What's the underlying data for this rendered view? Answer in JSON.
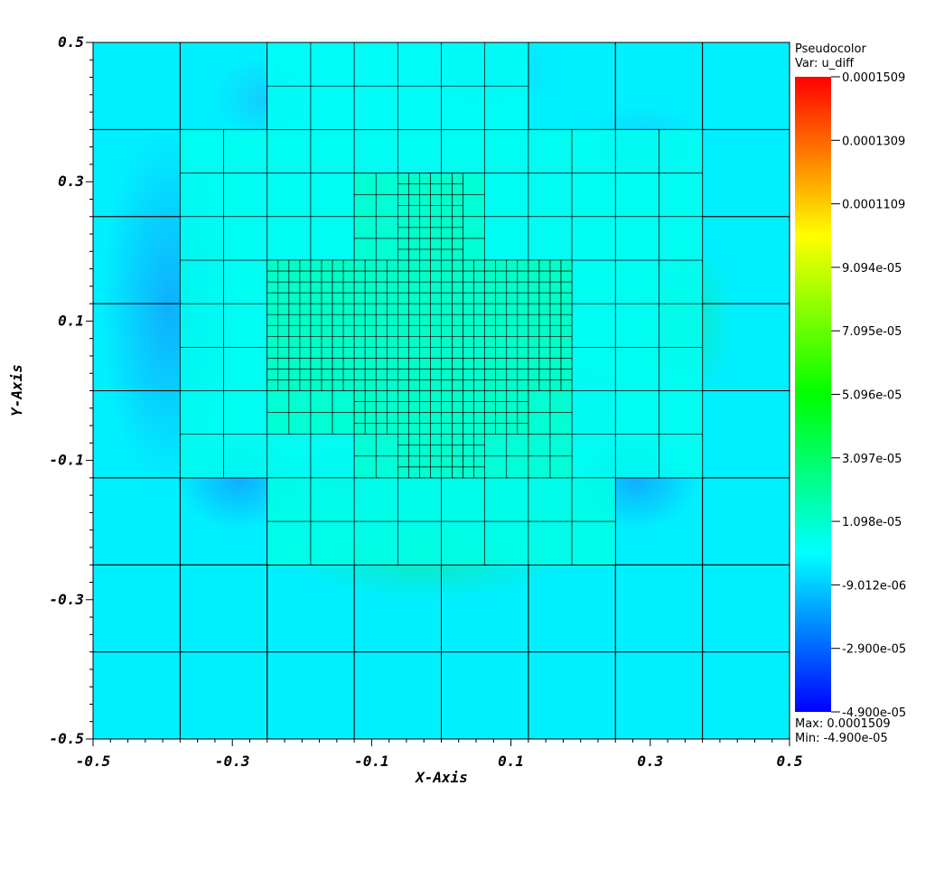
{
  "chart_data": {
    "type": "heatmap",
    "xlabel": "X-Axis",
    "ylabel": "Y-Axis",
    "xlim": [
      -0.5,
      0.5
    ],
    "ylim": [
      -0.5,
      0.5
    ],
    "x_ticks": [
      -0.5,
      -0.3,
      -0.1,
      0.1,
      0.3,
      0.5
    ],
    "y_ticks": [
      -0.5,
      -0.3,
      -0.1,
      0.1,
      0.3,
      0.5
    ],
    "x_tick_labels": [
      "-0.5",
      "-0.3",
      "-0.1",
      "0.1",
      "0.3",
      "0.5"
    ],
    "y_tick_labels": [
      "-0.5",
      "-0.3",
      "-0.1",
      "0.1",
      "0.3",
      "0.5"
    ],
    "legend": {
      "title": "Pseudocolor",
      "var_label": "Var: u_diff",
      "labels": [
        "0.0001509",
        "0.0001309",
        "0.0001109",
        "9.094e-05",
        "7.095e-05",
        "5.096e-05",
        "3.097e-05",
        "1.098e-05",
        "-9.012e-06",
        "-2.900e-05",
        "-4.900e-05"
      ],
      "max_label": "Max:  0.0001509",
      "min_label": "Min: -4.900e-05",
      "placement": "right"
    },
    "value_range": [
      -4.9e-05,
      0.0001509
    ],
    "colormap": [
      "#0000ff",
      "#00ffff",
      "#00ff00",
      "#ffff00",
      "#ff0000"
    ],
    "background_value": -2e-06,
    "amr_grid": {
      "cells": [
        [
          -0.5,
          0.375,
          0.125,
          0.125,
          -2e-06
        ],
        [
          -0.375,
          0.375,
          0.125,
          0.125,
          -2e-06
        ],
        [
          -0.25,
          0.4375,
          0.0625,
          0.0625,
          2e-06
        ],
        [
          -0.1875,
          0.4375,
          0.0625,
          0.0625,
          2e-06
        ],
        [
          -0.125,
          0.4375,
          0.0625,
          0.0625,
          2e-06
        ],
        [
          -0.0625,
          0.4375,
          0.0625,
          0.0625,
          2e-06
        ],
        [
          0,
          0.4375,
          0.0625,
          0.0625,
          2e-06
        ],
        [
          0.0625,
          0.4375,
          0.0625,
          0.0625,
          2e-06
        ],
        [
          -0.25,
          0.375,
          0.0625,
          0.0625,
          2e-06
        ],
        [
          -0.1875,
          0.375,
          0.0625,
          0.0625,
          2e-06
        ],
        [
          -0.125,
          0.375,
          0.0625,
          0.0625,
          2e-06
        ],
        [
          -0.0625,
          0.375,
          0.0625,
          0.0625,
          2e-06
        ],
        [
          0,
          0.375,
          0.0625,
          0.0625,
          2e-06
        ],
        [
          0.0625,
          0.375,
          0.0625,
          0.0625,
          2e-06
        ],
        [
          0.125,
          0.375,
          0.125,
          0.125,
          -2e-06
        ],
        [
          0.25,
          0.375,
          0.125,
          0.125,
          -2e-06
        ],
        [
          0.375,
          0.375,
          0.125,
          0.125,
          -2e-06
        ],
        [
          -0.5,
          0.25,
          0.125,
          0.125,
          -6e-06
        ],
        [
          -0.375,
          0.3125,
          0.0625,
          0.0625,
          0
        ],
        [
          -0.3125,
          0.3125,
          0.0625,
          0.0625,
          0
        ],
        [
          -0.25,
          0.3125,
          0.0625,
          0.0625,
          -1e-06
        ],
        [
          -0.1875,
          0.3125,
          0.0625,
          0.0625,
          -1e-06
        ],
        [
          -0.375,
          0.25,
          0.0625,
          0.0625,
          0
        ],
        [
          -0.3125,
          0.25,
          0.0625,
          0.0625,
          -1e-06
        ],
        [
          -0.25,
          0.25,
          0.0625,
          0.0625,
          -2e-06
        ],
        [
          -0.1875,
          0.25,
          0.0625,
          0.0625,
          -2e-06
        ],
        [
          -0.125,
          0.34375,
          0.03125,
          0.03125,
          8e-06
        ],
        [
          -0.09375,
          0.34375,
          0.03125,
          0.03125,
          8e-06
        ],
        [
          -0.0625,
          0.34375,
          0.03125,
          0.03125,
          8e-06
        ],
        [
          -0.03125,
          0.34375,
          0.03125,
          0.03125,
          8e-06
        ],
        [
          0,
          0.34375,
          0.03125,
          0.03125,
          8e-06
        ],
        [
          0.03125,
          0.34375,
          0.03125,
          0.03125,
          8e-06
        ],
        [
          -0.125,
          0.3125,
          0.03125,
          0.03125,
          8e-06
        ],
        [
          -0.09375,
          0.3125,
          0.03125,
          0.03125,
          8e-06
        ],
        [
          -0.0625,
          0.3125,
          0.03125,
          0.03125,
          8e-06
        ],
        [
          -0.03125,
          0.3125,
          0.03125,
          0.03125,
          8e-06
        ],
        [
          0,
          0.3125,
          0.03125,
          0.03125,
          8e-06
        ],
        [
          0.03125,
          0.3125,
          0.03125,
          0.03125,
          8e-06
        ],
        [
          -0.125,
          0.28125,
          0.03125,
          0.03125,
          8e-06
        ],
        [
          -0.09375,
          0.28125,
          0.03125,
          0.03125,
          8e-06
        ],
        [
          -0.0625,
          0.28125,
          0.015625,
          0.015625,
          1e-05
        ],
        [
          -0.046875,
          0.28125,
          0.015625,
          0.015625,
          1e-05
        ],
        [
          -0.03125,
          0.28125,
          0.015625,
          0.015625,
          1e-05
        ],
        [
          -0.015625,
          0.28125,
          0.015625,
          0.015625,
          1e-05
        ],
        [
          0,
          0.28125,
          0.015625,
          0.015625,
          1e-05
        ],
        [
          0.015625,
          0.28125,
          0.015625,
          0.015625,
          1e-05
        ],
        [
          -0.0625,
          0.296875,
          0.015625,
          0.015625,
          1e-05
        ],
        [
          -0.046875,
          0.296875,
          0.015625,
          0.015625,
          1e-05
        ],
        [
          -0.03125,
          0.296875,
          0.015625,
          0.015625,
          1e-05
        ],
        [
          -0.015625,
          0.296875,
          0.015625,
          0.015625,
          1e-05
        ],
        [
          0,
          0.296875,
          0.015625,
          0.015625,
          1e-05
        ],
        [
          0.015625,
          0.296875,
          0.015625,
          0.015625,
          1e-05
        ],
        [
          0.03125,
          0.28125,
          0.03125,
          0.03125,
          8e-06
        ],
        [
          -0.125,
          0.25,
          0.015625,
          0.015625,
          1e-05
        ],
        [
          -0.109375,
          0.25,
          0.015625,
          0.015625,
          1e-05
        ],
        [
          -0.09375,
          0.25,
          0.015625,
          0.015625,
          1e-05
        ],
        [
          -0.078125,
          0.25,
          0.015625,
          0.015625,
          1e-05
        ],
        [
          -0.0625,
          0.25,
          0.015625,
          0.015625,
          1e-05
        ],
        [
          -0.046875,
          0.25,
          0.015625,
          0.015625,
          1e-05
        ],
        [
          -0.03125,
          0.25,
          0.015625,
          0.015625,
          1e-05
        ],
        [
          -0.015625,
          0.25,
          0.015625,
          0.015625,
          1e-05
        ],
        [
          0,
          0.25,
          0.015625,
          0.015625,
          1e-05
        ],
        [
          0.015625,
          0.25,
          0.015625,
          0.015625,
          1e-05
        ],
        [
          -0.125,
          0.265625,
          0.015625,
          0.015625,
          1e-05
        ],
        [
          -0.109375,
          0.265625,
          0.015625,
          0.015625,
          1e-05
        ],
        [
          -0.09375,
          0.265625,
          0.015625,
          0.015625,
          1e-05
        ],
        [
          -0.078125,
          0.265625,
          0.015625,
          0.015625,
          1e-05
        ],
        [
          -0.0625,
          0.265625,
          0.015625,
          0.015625,
          1e-05
        ],
        [
          -0.046875,
          0.265625,
          0.015625,
          0.015625,
          1e-05
        ],
        [
          -0.03125,
          0.265625,
          0.015625,
          0.015625,
          1e-05
        ],
        [
          -0.015625,
          0.265625,
          0.015625,
          0.015625,
          1e-05
        ],
        [
          0,
          0.265625,
          0.015625,
          0.015625,
          1e-05
        ],
        [
          0.015625,
          0.265625,
          0.015625,
          0.015625,
          1e-05
        ],
        [
          0.03125,
          0.25,
          0.03125,
          0.03125,
          8e-06
        ],
        [
          0.0625,
          0.3125,
          0.0625,
          0.0625,
          0
        ],
        [
          0.125,
          0.3125,
          0.0625,
          0.0625,
          -1e-06
        ],
        [
          0.1875,
          0.3125,
          0.0625,
          0.0625,
          -2e-06
        ],
        [
          0.25,
          0.3125,
          0.0625,
          0.0625,
          -1e-06
        ],
        [
          0.0625,
          0.25,
          0.0625,
          0.0625,
          0
        ],
        [
          0.125,
          0.25,
          0.0625,
          0.0625,
          -2e-06
        ],
        [
          0.1875,
          0.25,
          0.0625,
          0.0625,
          -3e-06
        ],
        [
          0.25,
          0.25,
          0.0625,
          0.0625,
          -1e-06
        ],
        [
          0.375,
          0.25,
          0.125,
          0.125,
          -5e-06
        ]
      ],
      "note": "cells: [x, y, w, h, value] in axis units"
    }
  }
}
